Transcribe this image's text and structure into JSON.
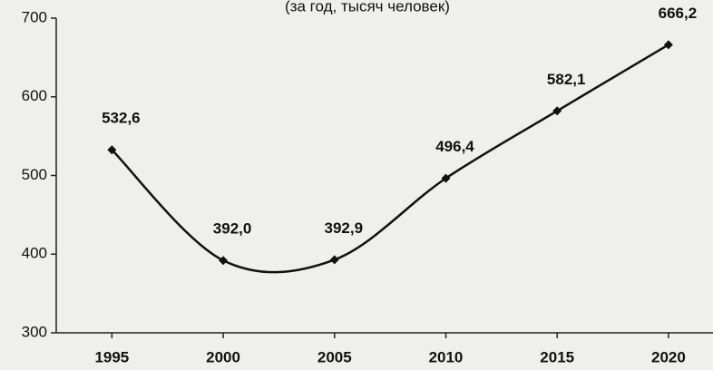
{
  "chart_data": {
    "type": "line",
    "title": "(за год, тысяч человек)",
    "x": [
      1995,
      2000,
      2005,
      2010,
      2015,
      2020
    ],
    "series": [
      {
        "name": null,
        "color": "#111111",
        "values": [
          532.6,
          392.0,
          392.9,
          496.4,
          582.1,
          666.2
        ],
        "value_labels": [
          "532,6",
          "392,0",
          "392,9",
          "496,4",
          "582,1",
          "666,2"
        ]
      }
    ],
    "xlim": [
      1992.5,
      2022
    ],
    "xticks": [
      1995,
      2000,
      2005,
      2010,
      2015,
      2020
    ],
    "ylim": [
      300,
      700
    ],
    "yticks": [
      300,
      400,
      500,
      600,
      700
    ],
    "grid": false
  }
}
